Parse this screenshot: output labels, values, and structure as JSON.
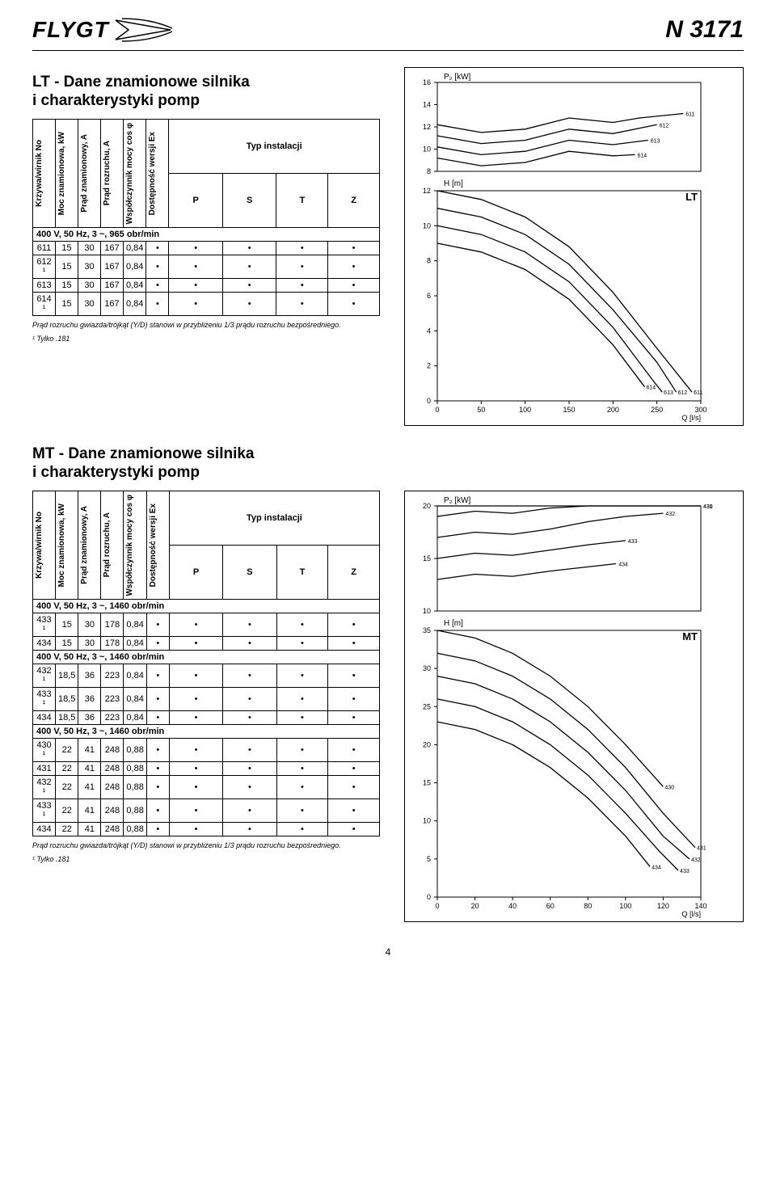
{
  "header": {
    "brand": "FLYGT",
    "model": "N 3171"
  },
  "lt": {
    "title": "LT - Dane znamionowe silnika\ni charakterystyki pomp",
    "columns": {
      "krzywa": "Krzywa/wirnik No",
      "moc": "Moc znamionowa, kW",
      "prad_zn": "Prąd znamionowy, A",
      "prad_roz": "Prąd rozruchu, A",
      "cos": "Współczynnik mocy cos φ",
      "ex": "Dostępność wersji Ex",
      "typ": "Typ instalacji",
      "p": "P",
      "s": "S",
      "t": "T",
      "z": "Z"
    },
    "group": "400 V, 50 Hz, 3 ~, 965 obr/min",
    "rows": [
      {
        "k": "611",
        "kw": "15",
        "a1": "30",
        "a2": "167",
        "cos": "0,84"
      },
      {
        "k": "612 ¹",
        "kw": "15",
        "a1": "30",
        "a2": "167",
        "cos": "0,84"
      },
      {
        "k": "613",
        "kw": "15",
        "a1": "30",
        "a2": "167",
        "cos": "0,84"
      },
      {
        "k": "614 ¹",
        "kw": "15",
        "a1": "30",
        "a2": "167",
        "cos": "0,84"
      }
    ],
    "note1": "Prąd rozruchu gwiazda/trójkąt (Y/D) stanowi w przybliżeniu 1/3 prądu rozruchu bezpośredniego.",
    "note2": "¹ Tylko .181",
    "chart": {
      "type": "line",
      "p2_label": "P₂ [kW]",
      "h_label": "H [m]",
      "q_label": "Q [l/s]",
      "code_label": "LT",
      "p2_ylim": [
        8,
        16
      ],
      "p2_ticks": [
        8,
        10,
        12,
        14,
        16
      ],
      "h_ylim": [
        0,
        12
      ],
      "h_ticks": [
        0,
        2,
        4,
        6,
        8,
        10,
        12
      ],
      "x_lim": [
        0,
        300
      ],
      "x_ticks": [
        0,
        50,
        100,
        150,
        200,
        250,
        300
      ],
      "curve_labels": [
        "611",
        "612",
        "613",
        "614"
      ],
      "curve_color": "#000000",
      "grid_color": "#000000",
      "p2_curves": {
        "611": [
          [
            0,
            12.2
          ],
          [
            50,
            11.5
          ],
          [
            100,
            11.8
          ],
          [
            150,
            12.8
          ],
          [
            200,
            12.4
          ],
          [
            230,
            12.8
          ],
          [
            280,
            13.2
          ]
        ],
        "612": [
          [
            0,
            11.2
          ],
          [
            50,
            10.5
          ],
          [
            100,
            10.8
          ],
          [
            150,
            11.8
          ],
          [
            200,
            11.4
          ],
          [
            250,
            12.2
          ]
        ],
        "613": [
          [
            0,
            10.2
          ],
          [
            50,
            9.5
          ],
          [
            100,
            9.8
          ],
          [
            150,
            10.8
          ],
          [
            200,
            10.4
          ],
          [
            240,
            10.8
          ]
        ],
        "614": [
          [
            0,
            9.2
          ],
          [
            50,
            8.5
          ],
          [
            100,
            8.8
          ],
          [
            150,
            9.8
          ],
          [
            200,
            9.4
          ],
          [
            225,
            9.5
          ]
        ]
      },
      "h_curves": {
        "611": [
          [
            0,
            12
          ],
          [
            50,
            11.5
          ],
          [
            100,
            10.5
          ],
          [
            150,
            8.8
          ],
          [
            200,
            6.2
          ],
          [
            250,
            3.0
          ],
          [
            290,
            0.5
          ]
        ],
        "612": [
          [
            0,
            11
          ],
          [
            50,
            10.5
          ],
          [
            100,
            9.5
          ],
          [
            150,
            7.8
          ],
          [
            200,
            5.2
          ],
          [
            250,
            2.2
          ],
          [
            272,
            0.5
          ]
        ],
        "613": [
          [
            0,
            10
          ],
          [
            50,
            9.5
          ],
          [
            100,
            8.5
          ],
          [
            150,
            6.8
          ],
          [
            200,
            4.2
          ],
          [
            245,
            1.2
          ],
          [
            256,
            0.5
          ]
        ],
        "614": [
          [
            0,
            9
          ],
          [
            50,
            8.5
          ],
          [
            100,
            7.5
          ],
          [
            150,
            5.8
          ],
          [
            200,
            3.2
          ],
          [
            236,
            0.8
          ]
        ]
      }
    }
  },
  "mt": {
    "title": "MT - Dane znamionowe silnika\ni charakterystyki pomp",
    "groups": [
      {
        "label": "400 V, 50 Hz, 3 ~, 1460 obr/min",
        "rows": [
          {
            "k": "433 ¹",
            "kw": "15",
            "a1": "30",
            "a2": "178",
            "cos": "0,84"
          },
          {
            "k": "434",
            "kw": "15",
            "a1": "30",
            "a2": "178",
            "cos": "0,84"
          }
        ]
      },
      {
        "label": "400 V, 50 Hz, 3 ~, 1460 obr/min",
        "rows": [
          {
            "k": "432 ¹",
            "kw": "18,5",
            "a1": "36",
            "a2": "223",
            "cos": "0,84"
          },
          {
            "k": "433 ¹",
            "kw": "18,5",
            "a1": "36",
            "a2": "223",
            "cos": "0,84"
          },
          {
            "k": "434",
            "kw": "18,5",
            "a1": "36",
            "a2": "223",
            "cos": "0,84"
          }
        ]
      },
      {
        "label": "400 V, 50 Hz, 3 ~, 1460 obr/min",
        "rows": [
          {
            "k": "430 ¹",
            "kw": "22",
            "a1": "41",
            "a2": "248",
            "cos": "0,88"
          },
          {
            "k": "431",
            "kw": "22",
            "a1": "41",
            "a2": "248",
            "cos": "0,88"
          },
          {
            "k": "432 ¹",
            "kw": "22",
            "a1": "41",
            "a2": "248",
            "cos": "0,88"
          },
          {
            "k": "433 ¹",
            "kw": "22",
            "a1": "41",
            "a2": "248",
            "cos": "0,88"
          },
          {
            "k": "434",
            "kw": "22",
            "a1": "41",
            "a2": "248",
            "cos": "0,88"
          }
        ]
      }
    ],
    "note1": "Prąd rozruchu gwiazda/trójkąt (Y/D) stanowi w przybliżeniu 1/3 prądu rozruchu bezpośredniego.",
    "note2": "¹ Tylko .181",
    "chart": {
      "type": "line",
      "p2_label": "P₂ [kW]",
      "h_label": "H [m]",
      "q_label": "Q [l/s]",
      "code_label": "MT",
      "p2_ylim": [
        10,
        20
      ],
      "p2_ticks": [
        10,
        15,
        20
      ],
      "h_ylim": [
        0,
        35
      ],
      "h_ticks": [
        0,
        5,
        10,
        15,
        20,
        25,
        30,
        35
      ],
      "x_lim": [
        0,
        140
      ],
      "x_ticks": [
        0,
        20,
        40,
        60,
        80,
        100,
        120,
        140
      ],
      "curve_labels": [
        "430",
        "431",
        "432",
        "433",
        "434"
      ],
      "curve_color": "#000000",
      "p2_curves": {
        "430": [
          [
            0,
            20
          ],
          [
            20,
            20.5
          ],
          [
            40,
            20.3
          ],
          [
            60,
            20.8
          ],
          [
            80,
            21
          ],
          [
            100,
            21
          ],
          [
            120,
            21.5
          ],
          [
            140,
            21.3
          ]
        ],
        "431": [
          [
            0,
            19
          ],
          [
            20,
            19.5
          ],
          [
            40,
            19.3
          ],
          [
            60,
            19.8
          ],
          [
            80,
            20
          ],
          [
            120,
            21
          ],
          [
            140,
            21.5
          ]
        ],
        "432": [
          [
            0,
            17
          ],
          [
            20,
            17.5
          ],
          [
            40,
            17.3
          ],
          [
            60,
            17.8
          ],
          [
            80,
            18.5
          ],
          [
            100,
            19
          ],
          [
            120,
            19.3
          ]
        ],
        "433": [
          [
            0,
            15
          ],
          [
            20,
            15.5
          ],
          [
            40,
            15.3
          ],
          [
            60,
            15.8
          ],
          [
            80,
            16.3
          ],
          [
            100,
            16.7
          ]
        ],
        "434": [
          [
            0,
            13
          ],
          [
            20,
            13.5
          ],
          [
            40,
            13.3
          ],
          [
            60,
            13.8
          ],
          [
            80,
            14.2
          ],
          [
            95,
            14.5
          ]
        ]
      },
      "h_curves": {
        "430": [
          [
            0,
            35
          ],
          [
            20,
            34
          ],
          [
            40,
            32
          ],
          [
            60,
            29
          ],
          [
            80,
            25
          ],
          [
            100,
            20
          ],
          [
            120,
            14.5
          ]
        ],
        "431": [
          [
            0,
            32
          ],
          [
            20,
            31
          ],
          [
            40,
            29
          ],
          [
            60,
            26
          ],
          [
            80,
            22
          ],
          [
            100,
            17
          ],
          [
            120,
            11
          ],
          [
            137,
            6.5
          ]
        ],
        "432": [
          [
            0,
            29
          ],
          [
            20,
            28
          ],
          [
            40,
            26
          ],
          [
            60,
            23
          ],
          [
            80,
            19
          ],
          [
            100,
            14
          ],
          [
            120,
            8
          ],
          [
            134,
            5
          ]
        ],
        "433": [
          [
            0,
            26
          ],
          [
            20,
            25
          ],
          [
            40,
            23
          ],
          [
            60,
            20
          ],
          [
            80,
            16
          ],
          [
            100,
            11
          ],
          [
            118,
            6
          ],
          [
            128,
            3.5
          ]
        ],
        "434": [
          [
            0,
            23
          ],
          [
            20,
            22
          ],
          [
            40,
            20
          ],
          [
            60,
            17
          ],
          [
            80,
            13
          ],
          [
            100,
            8
          ],
          [
            113,
            4
          ]
        ]
      }
    }
  },
  "page_number": "4"
}
